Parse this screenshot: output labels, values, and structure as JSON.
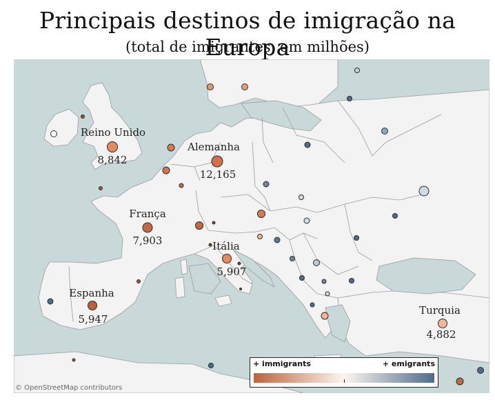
{
  "title": "Principais destinos de imigração na Europa",
  "subtitle": "(total de imigrantes, em milhões)",
  "attribution": "© OpenStreetMap contributors",
  "legend": {
    "left_label": "+ immigrants",
    "right_label": "+ emigrants",
    "color_low": "#c0623b",
    "color_mid": "#fdf6ef",
    "color_high": "#4f6c8d"
  },
  "map_colors": {
    "sea": "#c9d9d9",
    "land": "#f3f3f3",
    "border": "#9a9a9a"
  },
  "labeled_countries": [
    {
      "key": "reino_unido",
      "name": "Reino Unido",
      "value": "8,842"
    },
    {
      "key": "alemanha",
      "name": "Alemanha",
      "value": "12,165"
    },
    {
      "key": "franca",
      "name": "França",
      "value": "7,903"
    },
    {
      "key": "italia",
      "name": "Itália",
      "value": "5,907"
    },
    {
      "key": "espanha",
      "name": "Espanha",
      "value": "5,947"
    },
    {
      "key": "turquia",
      "name": "Turquia",
      "value": "4,882"
    }
  ]
}
